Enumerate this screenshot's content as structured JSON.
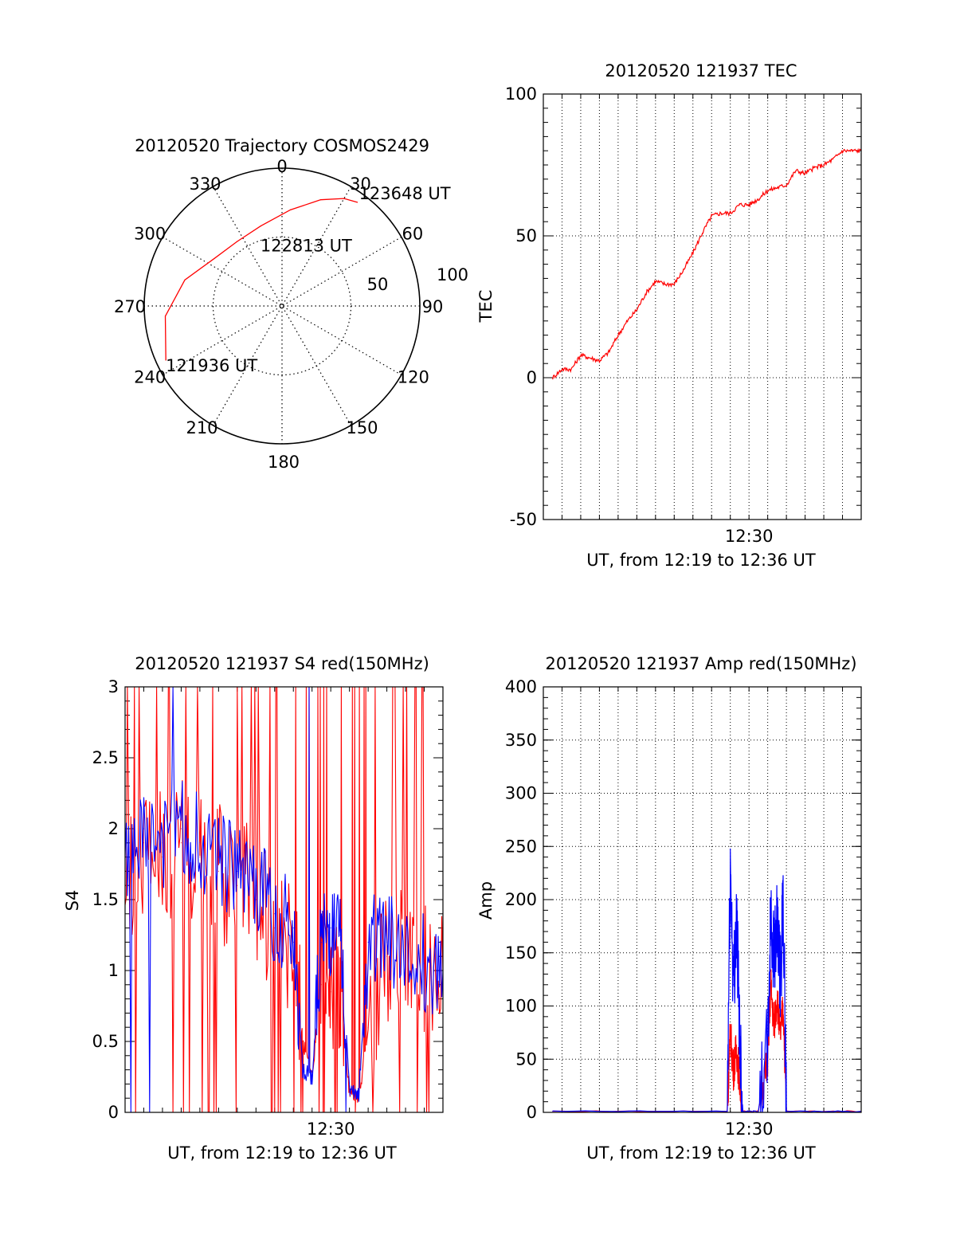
{
  "chart_data": [
    {
      "type": "polar",
      "title": "20120520 Trajectory COSMOS2429",
      "angle_labels": [
        "0",
        "30",
        "60",
        "90",
        "120",
        "150",
        "180",
        "210",
        "240",
        "270",
        "300",
        "330"
      ],
      "radial_labels": [
        "50",
        "100"
      ],
      "rlim": [
        0,
        100
      ],
      "grid": true,
      "series": [
        {
          "color": "#ff0000",
          "points": [
            {
              "az": 245,
              "r": 93
            },
            {
              "az": 265,
              "r": 85
            },
            {
              "az": 285,
              "r": 73
            },
            {
              "az": 305,
              "r": 60
            },
            {
              "az": 325,
              "r": 57
            },
            {
              "az": 345,
              "r": 60
            },
            {
              "az": 5,
              "r": 70
            },
            {
              "az": 20,
              "r": 82
            },
            {
              "az": 30,
              "r": 90
            },
            {
              "az": 36,
              "r": 93
            }
          ]
        }
      ],
      "annotations": [
        {
          "text": "121936 UT",
          "az": 245,
          "r": 93
        },
        {
          "text": "122813 UT",
          "az": 20,
          "r": 42
        },
        {
          "text": "123648 UT",
          "az": 36,
          "r": 93
        }
      ]
    },
    {
      "type": "line",
      "title": "20120520 121937 TEC",
      "xlabel": "UT, from 12:19 to 12:36 UT",
      "ylabel": "TEC",
      "xlim": [
        "12:19",
        "12:36"
      ],
      "ylim": [
        -50,
        100
      ],
      "xticks": [
        "12:30"
      ],
      "yticks": [
        -50,
        0,
        50,
        100
      ],
      "grid": true,
      "series": [
        {
          "color": "#ff0000",
          "x": [
            "12:19:30",
            "12:20:00",
            "12:20:30",
            "12:21:00",
            "12:21:30",
            "12:22:00",
            "12:22:30",
            "12:23:00",
            "12:23:30",
            "12:24:00",
            "12:24:30",
            "12:25:00",
            "12:25:30",
            "12:26:00",
            "12:26:30",
            "12:27:00",
            "12:27:30",
            "12:28:00",
            "12:28:30",
            "12:29:00",
            "12:29:30",
            "12:30:00",
            "12:30:30",
            "12:31:00",
            "12:31:30",
            "12:32:00",
            "12:32:30",
            "12:33:00",
            "12:33:30",
            "12:34:00",
            "12:34:30",
            "12:35:00",
            "12:35:30",
            "12:36:00"
          ],
          "y": [
            0,
            3,
            3,
            8,
            7,
            6,
            9,
            15,
            20,
            24,
            30,
            34,
            33,
            33,
            38,
            44,
            51,
            57,
            58,
            58,
            61,
            61,
            63,
            66,
            67,
            68,
            73,
            72,
            74,
            75,
            77,
            80,
            80,
            80
          ]
        }
      ]
    },
    {
      "type": "line",
      "title": "20120520 121937 S4 red(150MHz)",
      "xlabel": "UT, from 12:19 to 12:36 UT",
      "ylabel": "S4",
      "xlim": [
        "12:19",
        "12:36"
      ],
      "ylim": [
        0,
        3
      ],
      "xticks": [
        "12:30"
      ],
      "yticks": [
        0,
        0.5,
        1,
        1.5,
        2,
        2.5,
        3
      ],
      "grid": false,
      "series": [
        {
          "color": "#ff0000",
          "x": [
            "12:19:00",
            "12:20:00",
            "12:21:00",
            "12:22:00",
            "12:23:00",
            "12:24:00",
            "12:25:00",
            "12:26:00",
            "12:27:00",
            "12:28:00",
            "12:28:30",
            "12:29:00",
            "12:29:30",
            "12:30:00",
            "12:30:30",
            "12:31:00",
            "12:31:30",
            "12:32:00",
            "12:33:00",
            "12:34:00",
            "12:35:00",
            "12:36:00"
          ],
          "y": [
            1.6,
            1.9,
            1.8,
            1.9,
            1.8,
            1.7,
            1.6,
            1.5,
            1.3,
            1.2,
            0.5,
            0.25,
            0.9,
            0.85,
            0.9,
            0.15,
            0.1,
            0.6,
            1.1,
            1.2,
            1.0,
            1.0
          ]
        },
        {
          "color": "#0000ff",
          "x": [
            "12:19:00",
            "12:20:00",
            "12:21:00",
            "12:22:00",
            "12:23:00",
            "12:24:00",
            "12:25:00",
            "12:26:00",
            "12:27:00",
            "12:28:00",
            "12:28:30",
            "12:29:00",
            "12:29:30",
            "12:30:00",
            "12:30:30",
            "12:31:00",
            "12:31:30",
            "12:32:00",
            "12:33:00",
            "12:34:00",
            "12:35:00",
            "12:36:00"
          ],
          "y": [
            1.7,
            2.0,
            1.9,
            2.0,
            1.9,
            1.8,
            1.7,
            1.6,
            1.4,
            1.3,
            0.3,
            0.25,
            1.2,
            1.3,
            1.25,
            0.15,
            0.12,
            1.2,
            1.2,
            1.15,
            1.05,
            1.0
          ]
        }
      ]
    },
    {
      "type": "line",
      "title": "20120520 121937 Amp red(150MHz)",
      "xlabel": "UT, from 12:19 to 12:36 UT",
      "ylabel": "Amp",
      "xlim": [
        "12:19",
        "12:36"
      ],
      "ylim": [
        0,
        400
      ],
      "xticks": [
        "12:30"
      ],
      "yticks": [
        0,
        50,
        100,
        150,
        200,
        250,
        300,
        350,
        400
      ],
      "grid": true,
      "series": [
        {
          "color": "#ff0000",
          "x": [
            "12:19:30",
            "12:28:50",
            "12:29:00",
            "12:29:10",
            "12:29:20",
            "12:29:30",
            "12:29:40",
            "12:30:30",
            "12:31:00",
            "12:31:10",
            "12:31:20",
            "12:31:30",
            "12:31:40",
            "12:31:50",
            "12:32:00",
            "12:36:00"
          ],
          "y": [
            1,
            1,
            75,
            40,
            60,
            30,
            1,
            1,
            50,
            120,
            80,
            110,
            70,
            100,
            1,
            1
          ]
        },
        {
          "color": "#0000ff",
          "x": [
            "12:19:30",
            "12:28:50",
            "12:29:00",
            "12:29:10",
            "12:29:20",
            "12:29:30",
            "12:29:40",
            "12:30:30",
            "12:31:00",
            "12:31:10",
            "12:31:20",
            "12:31:30",
            "12:31:40",
            "12:31:50",
            "12:32:00",
            "12:36:00"
          ],
          "y": [
            1,
            1,
            230,
            120,
            180,
            80,
            1,
            1,
            60,
            185,
            150,
            170,
            120,
            195,
            1,
            1
          ]
        }
      ]
    }
  ]
}
